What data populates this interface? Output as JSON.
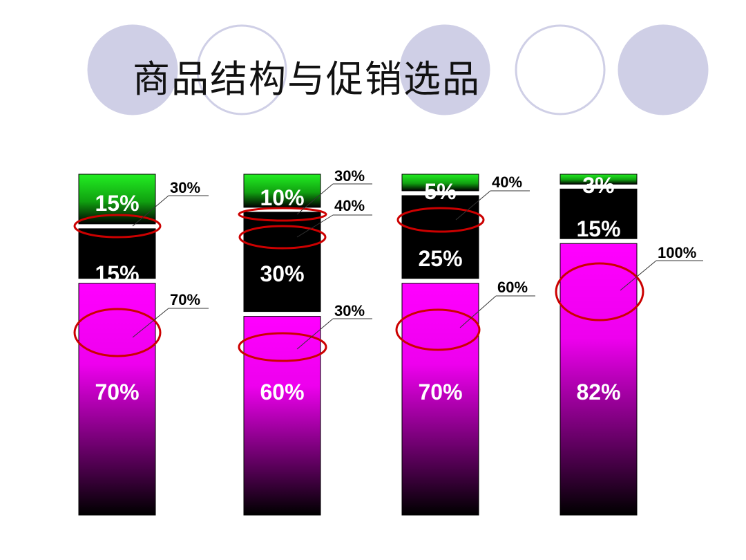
{
  "title": "商品结构与促销选品",
  "colors": {
    "circle_fill": "#cfcfe6",
    "circle_stroke": "#cfcfe6",
    "top_segment": "#22dd22",
    "middle_segment": "#000000",
    "bottom_segment": "#ff00ff",
    "highlight_ellipse": "#cc0000"
  },
  "chart_data": {
    "type": "bar",
    "stacked": true,
    "categories": [
      "",
      "",
      "",
      ""
    ],
    "stacks": [
      {
        "segments": [
          {
            "value": 70,
            "label": "70%",
            "callout": "70%"
          },
          {
            "value": 15,
            "label": "15%",
            "callout": ""
          },
          {
            "value": 15,
            "label": "15%",
            "callout": "30%"
          }
        ]
      },
      {
        "segments": [
          {
            "value": 60,
            "label": "60%",
            "callout": "30%"
          },
          {
            "value": 30,
            "label": "30%",
            "callout": "40%"
          },
          {
            "value": 10,
            "label": "10%",
            "callout": "30%"
          }
        ]
      },
      {
        "segments": [
          {
            "value": 70,
            "label": "70%",
            "callout": "60%"
          },
          {
            "value": 25,
            "label": "25%",
            "callout": ""
          },
          {
            "value": 5,
            "label": "5%",
            "callout": "40%"
          }
        ]
      },
      {
        "segments": [
          {
            "value": 82,
            "label": "82%",
            "callout": "100%"
          },
          {
            "value": 15,
            "label": "15%",
            "callout": ""
          },
          {
            "value": 3,
            "label": "3%",
            "callout": ""
          }
        ]
      }
    ],
    "ylim": [
      0,
      100
    ],
    "grid": false
  }
}
